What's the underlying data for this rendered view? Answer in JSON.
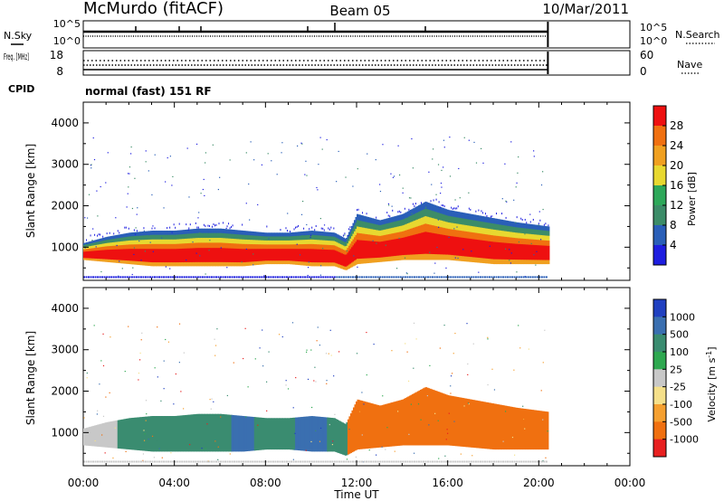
{
  "header": {
    "station": "McMurdo (fitACF)",
    "beam": "Beam 05",
    "date": "10/Mar/2011"
  },
  "colors": {
    "power_scale": [
      "#1e1ee0",
      "#2a5fb8",
      "#3c8c68",
      "#2ea85a",
      "#e8d830",
      "#f0a020",
      "#f07010",
      "#ee1010"
    ],
    "velocity_scale": [
      "#2040c0",
      "#3a6fb0",
      "#3a8c70",
      "#2ea850",
      "#c8c8c8",
      "#f5e08a",
      "#f5a030",
      "#f07010",
      "#e82020"
    ]
  },
  "chart_data": [
    {
      "type": "line",
      "panel": "noise",
      "ylabel_left": "N.Sky",
      "ylabel_right": "N.Search",
      "left_ticks": [
        "10^5",
        "10^0"
      ],
      "right_ticks": [
        "10^5",
        "10^0"
      ],
      "xlim_hours": [
        0,
        24
      ],
      "data_end_hour": 20.4
    },
    {
      "type": "scatter",
      "panel": "frequency",
      "ylabel_left": "Freq. [MHz]",
      "ylabel_right": "Nave",
      "left_ticks": [
        18,
        8
      ],
      "right_ticks": [
        60,
        0
      ],
      "xlim_hours": [
        0,
        24
      ],
      "data_end_hour": 20.4
    },
    {
      "type": "table",
      "panel": "cpid",
      "label": "CPID",
      "value": "normal (fast) 151 RF"
    },
    {
      "type": "heatmap",
      "panel": "power",
      "ylabel": "Slant Range [km]",
      "ylim": [
        200,
        4500
      ],
      "yticks": [
        1000,
        2000,
        3000,
        4000
      ],
      "colorbar_label": "Power [dB]",
      "colorbar_ticks": [
        4,
        8,
        12,
        16,
        20,
        24,
        28
      ],
      "xlim_hours": [
        0,
        24
      ],
      "echo_band": [
        {
          "t": 0.0,
          "lo": 700,
          "hi": 1100
        },
        {
          "t": 1.0,
          "lo": 650,
          "hi": 1250
        },
        {
          "t": 2.0,
          "lo": 600,
          "hi": 1350
        },
        {
          "t": 3.0,
          "lo": 550,
          "hi": 1400
        },
        {
          "t": 4.0,
          "lo": 550,
          "hi": 1400
        },
        {
          "t": 5.0,
          "lo": 550,
          "hi": 1450
        },
        {
          "t": 6.0,
          "lo": 550,
          "hi": 1450
        },
        {
          "t": 7.0,
          "lo": 550,
          "hi": 1400
        },
        {
          "t": 8.0,
          "lo": 600,
          "hi": 1350
        },
        {
          "t": 9.0,
          "lo": 600,
          "hi": 1350
        },
        {
          "t": 10.0,
          "lo": 550,
          "hi": 1400
        },
        {
          "t": 11.0,
          "lo": 550,
          "hi": 1350
        },
        {
          "t": 11.5,
          "lo": 450,
          "hi": 1200
        },
        {
          "t": 12.0,
          "lo": 600,
          "hi": 1800
        },
        {
          "t": 13.0,
          "lo": 650,
          "hi": 1650
        },
        {
          "t": 14.0,
          "lo": 700,
          "hi": 1800
        },
        {
          "t": 15.0,
          "lo": 700,
          "hi": 2100
        },
        {
          "t": 16.0,
          "lo": 700,
          "hi": 1900
        },
        {
          "t": 17.0,
          "lo": 650,
          "hi": 1800
        },
        {
          "t": 18.0,
          "lo": 600,
          "hi": 1700
        },
        {
          "t": 19.0,
          "lo": 600,
          "hi": 1600
        },
        {
          "t": 20.4,
          "lo": 600,
          "hi": 1500
        }
      ]
    },
    {
      "type": "heatmap",
      "panel": "velocity",
      "ylabel": "Slant Range [km]",
      "ylim": [
        200,
        4500
      ],
      "yticks": [
        1000,
        2000,
        3000,
        4000
      ],
      "colorbar_label": "Velocity [m s^-1]",
      "colorbar_ticks": [
        1000,
        500,
        100,
        25,
        -25,
        -100,
        -500,
        -1000
      ],
      "xlabel": "Time UT",
      "xticks": [
        "00:00",
        "04:00",
        "08:00",
        "12:00",
        "16:00",
        "20:00",
        "00:00"
      ],
      "xlim_hours": [
        0,
        24
      ],
      "velocity_segments": [
        {
          "start": 0.0,
          "end": 1.5,
          "velocity": 25
        },
        {
          "start": 1.5,
          "end": 6.5,
          "velocity": 100
        },
        {
          "start": 6.5,
          "end": 7.5,
          "velocity": 500
        },
        {
          "start": 7.5,
          "end": 9.3,
          "velocity": 100
        },
        {
          "start": 9.3,
          "end": 10.7,
          "velocity": 500
        },
        {
          "start": 10.7,
          "end": 11.6,
          "velocity": 100
        },
        {
          "start": 11.6,
          "end": 20.4,
          "velocity": -500
        }
      ]
    }
  ]
}
